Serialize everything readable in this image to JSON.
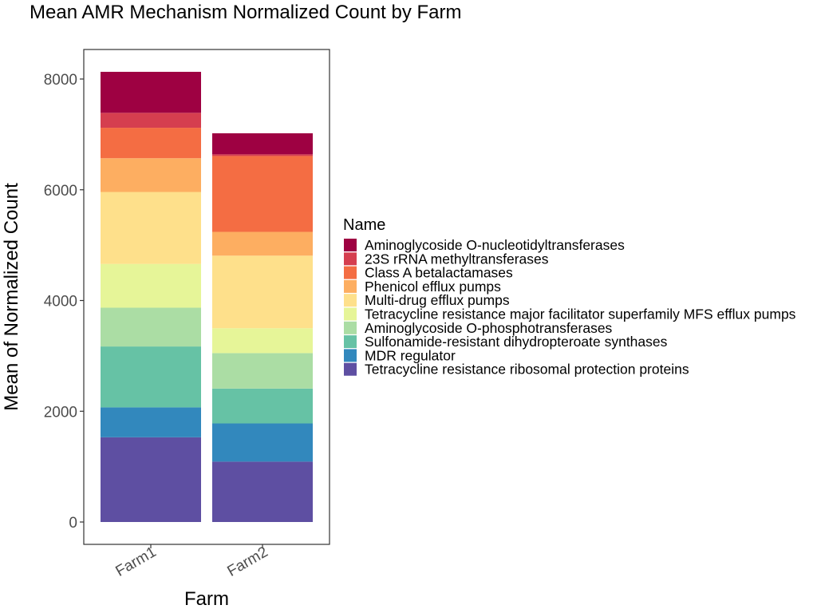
{
  "chart_data": {
    "type": "bar",
    "stacked": true,
    "title": "Mean AMR Mechanism Normalized Count by Farm",
    "xlabel": "Farm",
    "ylabel": "Mean of Normalized Count",
    "categories": [
      "Farm1",
      "Farm2"
    ],
    "ylim": [
      0,
      8500
    ],
    "yticks": [
      0,
      2000,
      4000,
      6000,
      8000
    ],
    "grid": false,
    "legend_position": "right",
    "legend_title": "Name",
    "series": [
      {
        "name": "Tetracycline resistance ribosomal protection proteins",
        "color": "#5E4FA2",
        "values": [
          1530,
          1090
        ]
      },
      {
        "name": "MDR regulator",
        "color": "#3288BD",
        "values": [
          540,
          690
        ]
      },
      {
        "name": "Sulfonamide-resistant dihydropteroate synthases",
        "color": "#66C2A5",
        "values": [
          1100,
          630
        ]
      },
      {
        "name": "Aminoglycoside O-phosphotransferases",
        "color": "#ABDDA4",
        "values": [
          700,
          640
        ]
      },
      {
        "name": "Tetracycline resistance major facilitator superfamily MFS efflux pumps",
        "color": "#E6F598",
        "values": [
          790,
          450
        ]
      },
      {
        "name": "Multi-drug efflux pumps",
        "color": "#FEE08B",
        "values": [
          1300,
          1310
        ]
      },
      {
        "name": "Phenicol efflux pumps",
        "color": "#FDAE61",
        "values": [
          610,
          430
        ]
      },
      {
        "name": "Class A betalactamases",
        "color": "#F46D43",
        "values": [
          550,
          1370
        ]
      },
      {
        "name": "23S rRNA methyltransferases",
        "color": "#D53E4F",
        "values": [
          270,
          30
        ]
      },
      {
        "name": "Aminoglycoside O-nucleotidyltransferases",
        "color": "#9E0142",
        "values": [
          740,
          380
        ]
      }
    ]
  }
}
